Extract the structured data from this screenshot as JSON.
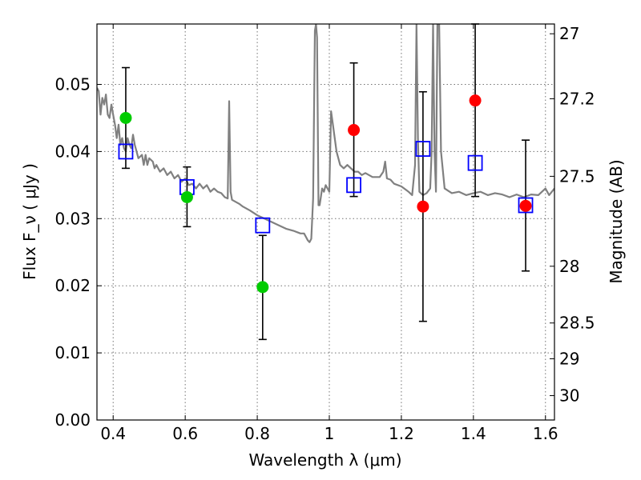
{
  "chart_data": {
    "type": "scatter",
    "title": "",
    "xlabel": "Wavelength  λ (μm)",
    "ylabel": "Flux  F_ν  ( μJy )",
    "ylabel_right": "Magnitude (AB)",
    "xlim": [
      0.355,
      1.625
    ],
    "ylim": [
      0.0,
      0.059
    ],
    "grid": true,
    "x_ticks": [
      {
        "value": 0.4,
        "label": "0.4"
      },
      {
        "value": 0.6,
        "label": "0.6"
      },
      {
        "value": 0.8,
        "label": "0.8"
      },
      {
        "value": 1.0,
        "label": "1"
      },
      {
        "value": 1.2,
        "label": "1.2"
      },
      {
        "value": 1.4,
        "label": "1.4"
      },
      {
        "value": 1.6,
        "label": "1.6"
      }
    ],
    "y_ticks": [
      {
        "value": 0.0,
        "label": "0.00"
      },
      {
        "value": 0.01,
        "label": "0.01"
      },
      {
        "value": 0.02,
        "label": "0.02"
      },
      {
        "value": 0.03,
        "label": "0.03"
      },
      {
        "value": 0.04,
        "label": "0.04"
      },
      {
        "value": 0.05,
        "label": "0.05"
      }
    ],
    "right_ticks": [
      {
        "mag": 27.0,
        "label": "27"
      },
      {
        "mag": 27.2,
        "label": "27.2"
      },
      {
        "mag": 27.5,
        "label": "27.5"
      },
      {
        "mag": 28.0,
        "label": "28"
      },
      {
        "mag": 28.5,
        "label": "28.5"
      },
      {
        "mag": 29.0,
        "label": "29"
      },
      {
        "mag": 30.0,
        "label": "30"
      }
    ],
    "series": [
      {
        "kind": "line",
        "color": "#808080",
        "x": [
          0.355,
          0.36,
          0.365,
          0.37,
          0.375,
          0.38,
          0.385,
          0.39,
          0.395,
          0.4,
          0.405,
          0.41,
          0.415,
          0.42,
          0.425,
          0.43,
          0.435,
          0.44,
          0.445,
          0.45,
          0.455,
          0.46,
          0.47,
          0.48,
          0.485,
          0.49,
          0.495,
          0.5,
          0.51,
          0.515,
          0.52,
          0.53,
          0.54,
          0.55,
          0.56,
          0.57,
          0.58,
          0.59,
          0.6,
          0.61,
          0.62,
          0.63,
          0.64,
          0.65,
          0.66,
          0.67,
          0.68,
          0.69,
          0.7,
          0.71,
          0.718,
          0.722,
          0.726,
          0.73,
          0.74,
          0.75,
          0.76,
          0.78,
          0.8,
          0.82,
          0.84,
          0.86,
          0.88,
          0.9,
          0.92,
          0.93,
          0.94,
          0.945,
          0.95,
          0.955,
          0.96,
          0.963,
          0.966,
          0.97,
          0.973,
          0.976,
          0.98,
          0.985,
          0.99,
          1.0,
          1.005,
          1.01,
          1.02,
          1.03,
          1.04,
          1.05,
          1.06,
          1.07,
          1.08,
          1.09,
          1.1,
          1.12,
          1.14,
          1.15,
          1.155,
          1.16,
          1.17,
          1.18,
          1.2,
          1.22,
          1.23,
          1.238,
          1.242,
          1.246,
          1.25,
          1.26,
          1.27,
          1.28,
          1.284,
          1.288,
          1.292,
          1.296,
          1.3,
          1.305,
          1.31,
          1.32,
          1.34,
          1.36,
          1.38,
          1.4,
          1.42,
          1.44,
          1.46,
          1.48,
          1.5,
          1.52,
          1.54,
          1.56,
          1.58,
          1.6,
          1.61,
          1.625
        ],
        "y": [
          0.0495,
          0.049,
          0.0455,
          0.048,
          0.047,
          0.0485,
          0.0455,
          0.045,
          0.047,
          0.0455,
          0.044,
          0.042,
          0.044,
          0.041,
          0.042,
          0.0405,
          0.04,
          0.042,
          0.041,
          0.0405,
          0.0425,
          0.041,
          0.039,
          0.0395,
          0.038,
          0.0395,
          0.038,
          0.039,
          0.0385,
          0.0375,
          0.038,
          0.037,
          0.0375,
          0.0365,
          0.037,
          0.036,
          0.0365,
          0.0355,
          0.036,
          0.035,
          0.0352,
          0.0345,
          0.0352,
          0.0345,
          0.035,
          0.034,
          0.0345,
          0.034,
          0.0338,
          0.0332,
          0.033,
          0.0475,
          0.034,
          0.0328,
          0.0325,
          0.0322,
          0.0318,
          0.0312,
          0.0305,
          0.03,
          0.0295,
          0.029,
          0.0285,
          0.0282,
          0.0278,
          0.0278,
          0.0268,
          0.0265,
          0.027,
          0.033,
          0.058,
          0.059,
          0.057,
          0.032,
          0.032,
          0.033,
          0.0345,
          0.034,
          0.035,
          0.034,
          0.046,
          0.044,
          0.04,
          0.038,
          0.0375,
          0.038,
          0.0375,
          0.037,
          0.037,
          0.0365,
          0.0368,
          0.0362,
          0.0362,
          0.037,
          0.0385,
          0.036,
          0.0358,
          0.0352,
          0.0348,
          0.034,
          0.0335,
          0.038,
          0.059,
          0.042,
          0.034,
          0.0335,
          0.0338,
          0.0345,
          0.04,
          0.059,
          0.04,
          0.034,
          0.059,
          0.059,
          0.04,
          0.0345,
          0.0338,
          0.034,
          0.0335,
          0.0338,
          0.034,
          0.0335,
          0.0338,
          0.0336,
          0.0332,
          0.0336,
          0.0332,
          0.0336,
          0.0335,
          0.0345,
          0.0335,
          0.0345
        ]
      },
      {
        "kind": "points",
        "marker": "open-square",
        "color": "#0000ff",
        "x": [
          0.435,
          0.605,
          0.815,
          1.068,
          1.26,
          1.405,
          1.545
        ],
        "y": [
          0.04,
          0.0347,
          0.029,
          0.035,
          0.0404,
          0.0383,
          0.032
        ]
      },
      {
        "kind": "points",
        "marker": "filled-circle",
        "color": "#00cc00",
        "x": [
          0.435,
          0.605,
          0.815
        ],
        "y": [
          0.045,
          0.0332,
          0.0198
        ],
        "y_low": [
          0.0375,
          0.0288,
          0.012
        ],
        "y_high": [
          0.0525,
          0.0377,
          0.0275
        ]
      },
      {
        "kind": "points",
        "marker": "filled-circle",
        "color": "#ff0000",
        "x": [
          1.068,
          1.26,
          1.405,
          1.545
        ],
        "y": [
          0.0432,
          0.0318,
          0.0476,
          0.0319
        ],
        "y_low": [
          0.0333,
          0.0147,
          0.0333,
          0.0222
        ],
        "y_high": [
          0.0532,
          0.0489,
          0.059,
          0.0417
        ]
      }
    ]
  }
}
